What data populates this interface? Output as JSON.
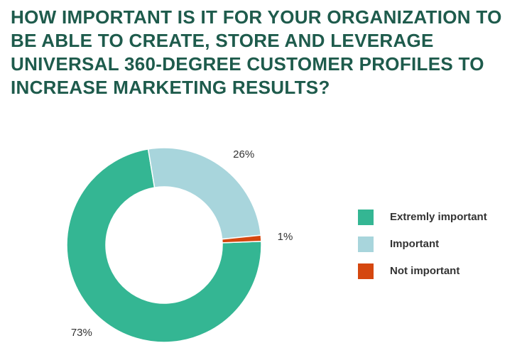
{
  "chart_data": {
    "type": "donut",
    "title": "HOW IMPORTANT IS IT FOR YOUR ORGANIZATION TO BE ABLE TO CREATE, STORE AND LEVERAGE UNIVERSAL 360-DEGREE CUSTOMER PROFILES TO INCREASE MARKETING RESULTS?",
    "categories": [
      "Extremly important",
      "Important",
      "Not important"
    ],
    "values": [
      73,
      26,
      1
    ],
    "value_labels": [
      "73%",
      "26%",
      "1%"
    ],
    "colors": [
      "#34b693",
      "#a8d5dc",
      "#d5470f"
    ],
    "legend": "right"
  }
}
